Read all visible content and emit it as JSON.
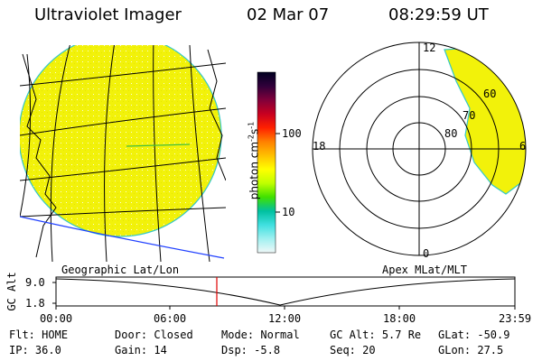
{
  "header": {
    "instrument": "Ultraviolet Imager",
    "date": "02 Mar 07",
    "time": "08:29:59 UT"
  },
  "colors": {
    "image_fill": "#f2f20a",
    "image_edge": "#34c8c8",
    "overlay_lines": "#000000",
    "blue_line": "#2040ff",
    "time_marker": "#e00000"
  },
  "map_panel": {
    "label": "Geographic Lat/Lon"
  },
  "colorbar": {
    "unit_main": "photon cm",
    "unit_sup1": "-2",
    "unit_mid": "s",
    "unit_sup2": "-1",
    "tick_high": "100",
    "tick_low": "10",
    "stops": [
      "#000020",
      "#30003a",
      "#80003a",
      "#c80020",
      "#ff2000",
      "#ff8000",
      "#ffc000",
      "#ffff00",
      "#c0ff00",
      "#40e000",
      "#00c0a0",
      "#40e0e0",
      "#a0f0f0",
      "#f0f8f8"
    ]
  },
  "polar_panel": {
    "label": "Apex MLat/MLT",
    "mlt_top": "12",
    "mlt_left": "18",
    "mlt_right": "6",
    "mlt_bottom": "0",
    "lat_labels": [
      "80",
      "70",
      "60"
    ]
  },
  "altitude_plot": {
    "axis_label": "GC Alt",
    "y_ticks": [
      "9.0",
      "1.8"
    ],
    "x_ticks": [
      "00:00",
      "06:00",
      "12:00",
      "18:00",
      "23:59"
    ],
    "marker_time": "08:30"
  },
  "status": {
    "row1": [
      {
        "label": "Flt:",
        "value": "HOME"
      },
      {
        "label": "Door:",
        "value": "Closed"
      },
      {
        "label": "Mode:",
        "value": "Normal"
      },
      {
        "label": "GC Alt:",
        "value": "5.7 Re"
      },
      {
        "label": "GLat:",
        "value": "-50.9"
      }
    ],
    "row2": [
      {
        "label": "IP:",
        "value": "36.0"
      },
      {
        "label": "Gain:",
        "value": "14"
      },
      {
        "label": "Dsp:",
        "value": "-5.8"
      },
      {
        "label": "Seq:",
        "value": "20"
      },
      {
        "label": "GLon:",
        "value": "27.5"
      }
    ]
  }
}
